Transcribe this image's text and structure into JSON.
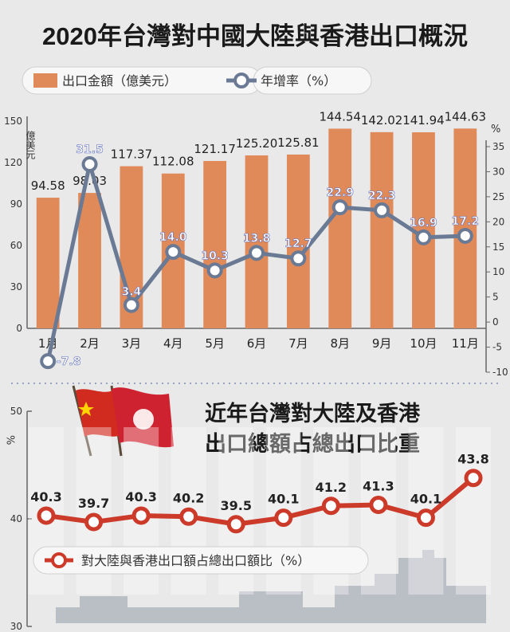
{
  "title": "2020年台灣對中國大陸與香港出口概況",
  "colors": {
    "bar": "#e08a5a",
    "line_top": "#6b7a94",
    "line_bottom": "#cc3a2a",
    "background": "#e9e9e9"
  },
  "chart_data": [
    {
      "type": "bar+line",
      "categories": [
        "1月",
        "2月",
        "3月",
        "4月",
        "5月",
        "6月",
        "7月",
        "8月",
        "9月",
        "10月",
        "11月"
      ],
      "left_axis_label": "億美元",
      "left_ticks": [
        "150",
        "120",
        "90",
        "60",
        "30",
        "0"
      ],
      "right_axis_label": "%",
      "right_ticks": [
        "35",
        "30",
        "25",
        "20",
        "15",
        "10",
        "5",
        "0",
        "-5",
        "-10"
      ],
      "ylim_left": [
        0,
        150
      ],
      "ylim_right": [
        -10,
        35
      ],
      "series": [
        {
          "name": "出口金額（億美元）",
          "type": "bar",
          "values": [
            94.58,
            98.03,
            117.37,
            112.08,
            121.17,
            125.2,
            125.81,
            144.54,
            142.02,
            141.94,
            144.63
          ],
          "labels": [
            "94.58",
            "98.03",
            "117.37",
            "112.08",
            "121.17",
            "125.20",
            "125.81",
            "144.54",
            "142.02",
            "141.94",
            "144.63"
          ]
        },
        {
          "name": "年增率（%）",
          "type": "line",
          "values": [
            -7.8,
            31.5,
            3.4,
            14.0,
            10.3,
            13.8,
            12.7,
            22.9,
            22.3,
            16.9,
            17.2
          ],
          "labels": [
            "-7.8",
            "31.5",
            "3.4",
            "14.0",
            "10.3",
            "13.8",
            "12.7",
            "22.9",
            "22.3",
            "16.9",
            "17.2"
          ]
        }
      ],
      "legend": [
        "出口金額（億美元）",
        "年增率（%）"
      ]
    },
    {
      "type": "line",
      "title": "近年台灣對大陸及香港出口總額占總出口比重",
      "title_lines": [
        "近年台灣對大陸及香港",
        "出口總額占總出口比重"
      ],
      "y_ticks": [
        "50",
        "40",
        "30"
      ],
      "y_unit": "%",
      "ylim": [
        30,
        50
      ],
      "series": [
        {
          "name": "對大陸與香港出口額占總出口額比（%）",
          "values": [
            40.3,
            39.7,
            40.3,
            40.2,
            39.5,
            40.1,
            41.2,
            41.3,
            40.1,
            43.8
          ],
          "labels": [
            "40.3",
            "39.7",
            "40.3",
            "40.2",
            "39.5",
            "40.1",
            "41.2",
            "41.3",
            "40.1",
            "43.8"
          ]
        }
      ],
      "legend": [
        "對大陸與香港出口額占總出口額比（%）"
      ]
    }
  ]
}
